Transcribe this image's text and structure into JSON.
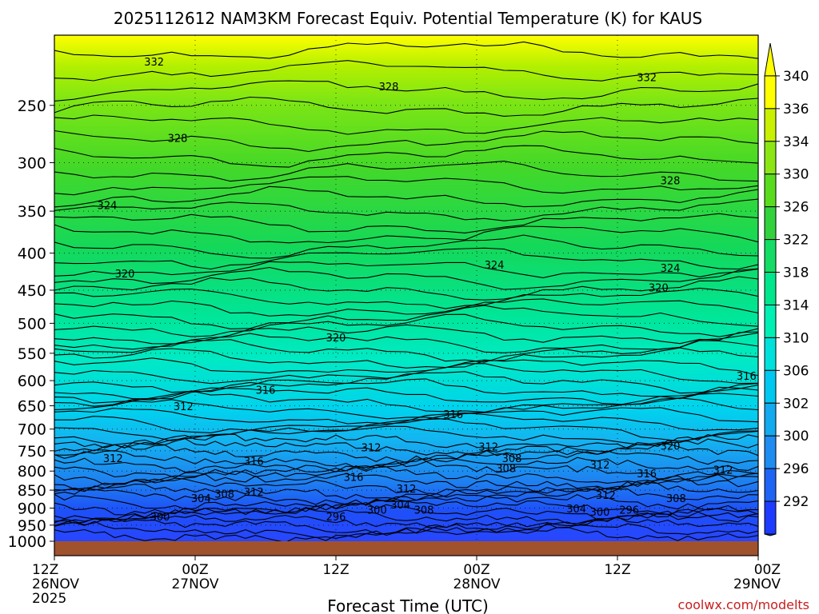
{
  "chart_data": {
    "type": "contour",
    "title": "2025112612 NAM3KM Forecast Equiv. Potential Temperature (K) for KAUS",
    "xlabel": "Forecast Time (UTC)",
    "ylabel": "",
    "credit": "coolwx.com/modelts",
    "x_ticks": [
      {
        "hours": 0,
        "line1": "12Z",
        "line2": "26NOV",
        "line3": "2025"
      },
      {
        "hours": 12,
        "line1": "00Z",
        "line2": "27NOV",
        "line3": ""
      },
      {
        "hours": 24,
        "line1": "12Z",
        "line2": "",
        "line3": ""
      },
      {
        "hours": 36,
        "line1": "00Z",
        "line2": "28NOV",
        "line3": ""
      },
      {
        "hours": 48,
        "line1": "12Z",
        "line2": "",
        "line3": ""
      },
      {
        "hours": 60,
        "line1": "00Z",
        "line2": "29NOV",
        "line3": ""
      }
    ],
    "xlim": [
      0,
      60
    ],
    "y_axis": "pressure (hPa), log scale, decreasing upward",
    "y_ticks": [
      250,
      300,
      350,
      400,
      450,
      500,
      550,
      600,
      650,
      700,
      750,
      800,
      850,
      900,
      950,
      1000
    ],
    "ylim": [
      1000,
      200
    ],
    "colorbar": {
      "levels": [
        292,
        296,
        300,
        302,
        306,
        310,
        314,
        318,
        322,
        326,
        330,
        334,
        336,
        340
      ],
      "colors": [
        "#1e3cff",
        "#1e64f5",
        "#1e8cf0",
        "#14aaf0",
        "#00c8f0",
        "#00e1dc",
        "#00f0b4",
        "#00e68c",
        "#14dc64",
        "#32d23c",
        "#5adc1e",
        "#8ce614",
        "#c8f000",
        "#ffff00"
      ]
    },
    "contour_labels": [
      {
        "value": 332,
        "h": 8.5,
        "p": 218
      },
      {
        "value": 328,
        "h": 28.5,
        "p": 236
      },
      {
        "value": 332,
        "h": 50.5,
        "p": 229
      },
      {
        "value": 328,
        "h": 10.5,
        "p": 278
      },
      {
        "value": 324,
        "h": 4.5,
        "p": 344
      },
      {
        "value": 328,
        "h": 52.5,
        "p": 318
      },
      {
        "value": 324,
        "h": 37.5,
        "p": 416
      },
      {
        "value": 324,
        "h": 52.5,
        "p": 420
      },
      {
        "value": 320,
        "h": 6.0,
        "p": 428
      },
      {
        "value": 320,
        "h": 51.5,
        "p": 447
      },
      {
        "value": 320,
        "h": 24.0,
        "p": 524
      },
      {
        "value": 316,
        "h": 59.0,
        "p": 592
      },
      {
        "value": 316,
        "h": 18.0,
        "p": 619
      },
      {
        "value": 312,
        "h": 11.0,
        "p": 652
      },
      {
        "value": 316,
        "h": 34.0,
        "p": 669
      },
      {
        "value": 312,
        "h": 37.0,
        "p": 742
      },
      {
        "value": 320,
        "h": 52.5,
        "p": 740
      },
      {
        "value": 312,
        "h": 27.0,
        "p": 744
      },
      {
        "value": 308,
        "h": 39.0,
        "p": 770
      },
      {
        "value": 312,
        "h": 5.0,
        "p": 770
      },
      {
        "value": 316,
        "h": 17.0,
        "p": 776
      },
      {
        "value": 308,
        "h": 38.5,
        "p": 794
      },
      {
        "value": 312,
        "h": 46.5,
        "p": 785
      },
      {
        "value": 312,
        "h": 57.0,
        "p": 798
      },
      {
        "value": 316,
        "h": 25.5,
        "p": 817
      },
      {
        "value": 316,
        "h": 50.5,
        "p": 808
      },
      {
        "value": 312,
        "h": 30.0,
        "p": 848
      },
      {
        "value": 312,
        "h": 17.0,
        "p": 856
      },
      {
        "value": 308,
        "h": 14.5,
        "p": 862
      },
      {
        "value": 304,
        "h": 12.5,
        "p": 874
      },
      {
        "value": 312,
        "h": 47.0,
        "p": 865
      },
      {
        "value": 308,
        "h": 53.0,
        "p": 874
      },
      {
        "value": 304,
        "h": 29.5,
        "p": 892
      },
      {
        "value": 300,
        "h": 27.5,
        "p": 907
      },
      {
        "value": 308,
        "h": 31.5,
        "p": 907
      },
      {
        "value": 304,
        "h": 44.5,
        "p": 903
      },
      {
        "value": 300,
        "h": 46.5,
        "p": 912
      },
      {
        "value": 296,
        "h": 49.0,
        "p": 907
      },
      {
        "value": 296,
        "h": 24.0,
        "p": 926
      },
      {
        "value": 300,
        "h": 9.0,
        "p": 927
      }
    ]
  }
}
